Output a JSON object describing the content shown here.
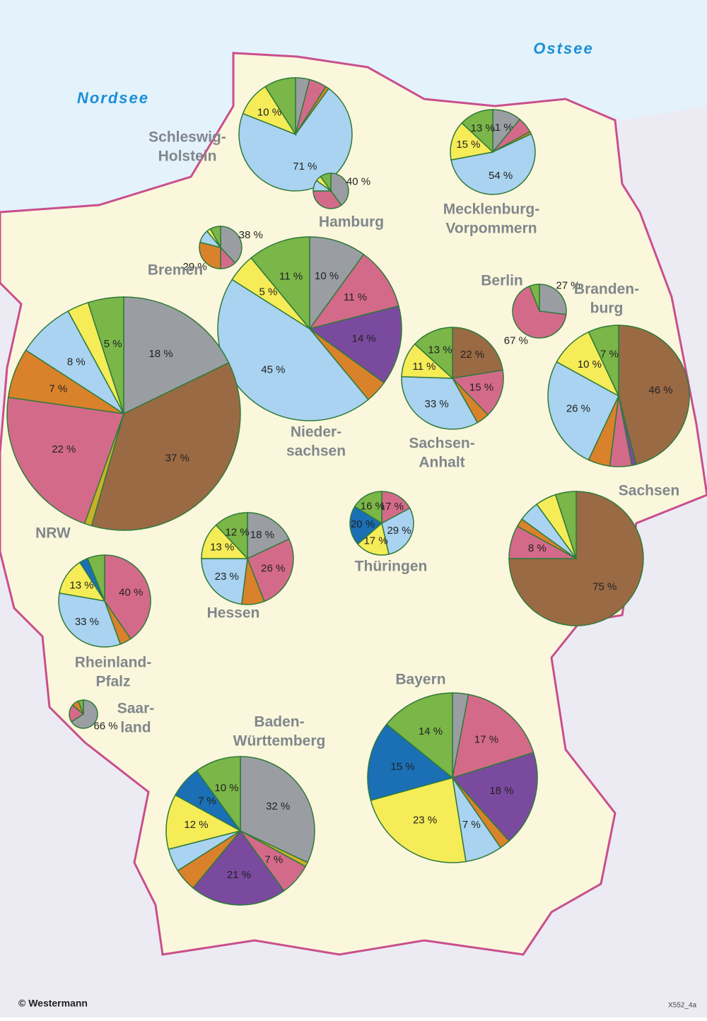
{
  "map": {
    "seas": [
      "Nordsee",
      "Ostsee"
    ],
    "copyright": "© Westermann",
    "code": "X552_4a"
  },
  "chart_data": [
    {
      "type": "pie",
      "title": [
        "Schleswig-",
        "Holstein"
      ],
      "values": [
        4,
        5,
        1,
        71,
        10,
        9
      ],
      "value_labels": [
        null,
        null,
        null,
        "71 %",
        "10 %",
        null
      ],
      "colors": [
        "#9a9ea3",
        "#d46a8a",
        "#d9822b",
        "#a9d3f0",
        "#f5ec57",
        "#7ab648"
      ]
    },
    {
      "type": "pie",
      "title": [
        "Hamburg"
      ],
      "values": [
        40,
        35,
        10,
        5,
        10
      ],
      "value_labels": [
        "40 %",
        null,
        null,
        null,
        null
      ],
      "colors": [
        "#9a9ea3",
        "#d46a8a",
        "#a9d3f0",
        "#f5ec57",
        "#7ab648"
      ]
    },
    {
      "type": "pie",
      "title": [
        "Mecklenburg-",
        "Vorpommern"
      ],
      "values": [
        11,
        6,
        1,
        54,
        15,
        13
      ],
      "value_labels": [
        "11 %",
        null,
        null,
        "54 %",
        "15 %",
        "13 %"
      ],
      "colors": [
        "#9a9ea3",
        "#d46a8a",
        "#d9822b",
        "#a9d3f0",
        "#f5ec57",
        "#7ab648"
      ]
    },
    {
      "type": "pie",
      "title": [
        "Bremen"
      ],
      "values": [
        38,
        12,
        29,
        10,
        3,
        8
      ],
      "value_labels": [
        "38 %",
        null,
        "29 %",
        null,
        null,
        null
      ],
      "colors": [
        "#9a9ea3",
        "#d46a8a",
        "#d9822b",
        "#a9d3f0",
        "#f5ec57",
        "#7ab648"
      ]
    },
    {
      "type": "pie",
      "title": [
        "Nieder-",
        "sachsen"
      ],
      "values": [
        10,
        11,
        14,
        4,
        45,
        5,
        11
      ],
      "value_labels": [
        "10 %",
        "11 %",
        "14 %",
        null,
        "45 %",
        "5 %",
        "11 %"
      ],
      "colors": [
        "#9a9ea3",
        "#d46a8a",
        "#7a4a9e",
        "#d9822b",
        "#a9d3f0",
        "#f5ec57",
        "#7ab648"
      ]
    },
    {
      "type": "pie",
      "title": [
        "NRW"
      ],
      "values": [
        18,
        37,
        1,
        22,
        7,
        8,
        3,
        5
      ],
      "value_labels": [
        "18 %",
        "37 %",
        null,
        "22 %",
        "7 %",
        "8 %",
        null,
        "5 %"
      ],
      "colors": [
        "#9a9ea3",
        "#9a6a45",
        "#c9b227",
        "#d46a8a",
        "#d9822b",
        "#a9d3f0",
        "#f5ec57",
        "#7ab648"
      ]
    },
    {
      "type": "pie",
      "title": [
        "Berlin"
      ],
      "values": [
        27,
        67,
        6
      ],
      "value_labels": [
        "27 %",
        "67 %",
        null
      ],
      "colors": [
        "#9a9ea3",
        "#d46a8a",
        "#7ab648"
      ]
    },
    {
      "type": "pie",
      "title": [
        "Branden-",
        "burg"
      ],
      "values": [
        46,
        1,
        5,
        5,
        26,
        10,
        7
      ],
      "value_labels": [
        "46 %",
        null,
        null,
        null,
        "26 %",
        "10 %",
        "7 %"
      ],
      "colors": [
        "#9a6a45",
        "#7a4a9e",
        "#d46a8a",
        "#d9822b",
        "#a9d3f0",
        "#f5ec57",
        "#7ab648"
      ]
    },
    {
      "type": "pie",
      "title": [
        "Sachsen-",
        "Anhalt"
      ],
      "values": [
        22,
        15,
        4,
        33,
        11,
        13
      ],
      "value_labels": [
        "22 %",
        "15 %",
        null,
        "33 %",
        "11 %",
        "13 %"
      ],
      "colors": [
        "#9a6a45",
        "#d46a8a",
        "#d9822b",
        "#a9d3f0",
        "#f5ec57",
        "#7ab648"
      ]
    },
    {
      "type": "pie",
      "title": [
        "Sachsen"
      ],
      "values": [
        75,
        8,
        2,
        5,
        5,
        5
      ],
      "value_labels": [
        "75 %",
        "8 %",
        null,
        null,
        null,
        null
      ],
      "colors": [
        "#9a6a45",
        "#d46a8a",
        "#d9822b",
        "#a9d3f0",
        "#f5ec57",
        "#7ab648"
      ]
    },
    {
      "type": "pie",
      "title": [
        "Thüringen"
      ],
      "values": [
        17,
        29,
        17,
        20,
        16
      ],
      "value_labels": [
        "17 %",
        "29 %",
        "17 %",
        "20 %",
        "16 %"
      ],
      "colors": [
        "#d46a8a",
        "#a9d3f0",
        "#f5ec57",
        "#1a6fb5",
        "#7ab648"
      ]
    },
    {
      "type": "pie",
      "title": [
        "Hessen"
      ],
      "values": [
        18,
        26,
        8,
        23,
        13,
        12
      ],
      "value_labels": [
        "18 %",
        "26 %",
        null,
        "23 %",
        "13 %",
        "12 %"
      ],
      "colors": [
        "#9a9ea3",
        "#d46a8a",
        "#d9822b",
        "#a9d3f0",
        "#f5ec57",
        "#7ab648"
      ]
    },
    {
      "type": "pie",
      "title": [
        "Rheinland-",
        "Pfalz"
      ],
      "values": [
        40,
        4,
        33,
        13,
        3,
        6
      ],
      "value_labels": [
        "40 %",
        null,
        "33 %",
        "13 %",
        null,
        null
      ],
      "colors": [
        "#d46a8a",
        "#d9822b",
        "#a9d3f0",
        "#f5ec57",
        "#1a6fb5",
        "#7ab648"
      ]
    },
    {
      "type": "pie",
      "title": [
        "Saar-",
        "land"
      ],
      "values": [
        66,
        20,
        8,
        6
      ],
      "value_labels": [
        "66 %",
        null,
        null,
        null
      ],
      "colors": [
        "#9a9ea3",
        "#d46a8a",
        "#d9822b",
        "#7ab648"
      ]
    },
    {
      "type": "pie",
      "title": [
        "Baden-",
        "Württemberg"
      ],
      "values": [
        32,
        1,
        7,
        21,
        5,
        5,
        12,
        7,
        10
      ],
      "value_labels": [
        "32 %",
        null,
        "7 %",
        "21 %",
        null,
        null,
        "12 %",
        "7 %",
        "10 %"
      ],
      "colors": [
        "#9a9ea3",
        "#c9b227",
        "#d46a8a",
        "#7a4a9e",
        "#d9822b",
        "#a9d3f0",
        "#f5ec57",
        "#1a6fb5",
        "#7ab648"
      ]
    },
    {
      "type": "pie",
      "title": [
        "Bayern"
      ],
      "values": [
        3,
        17,
        18,
        2,
        7,
        23,
        15,
        14
      ],
      "value_labels": [
        null,
        "17 %",
        "18 %",
        null,
        "7 %",
        "23 %",
        "15 %",
        "14 %"
      ],
      "colors": [
        "#9a9ea3",
        "#d46a8a",
        "#7a4a9e",
        "#d9822b",
        "#a9d3f0",
        "#f5ec57",
        "#1a6fb5",
        "#7ab648"
      ]
    }
  ]
}
